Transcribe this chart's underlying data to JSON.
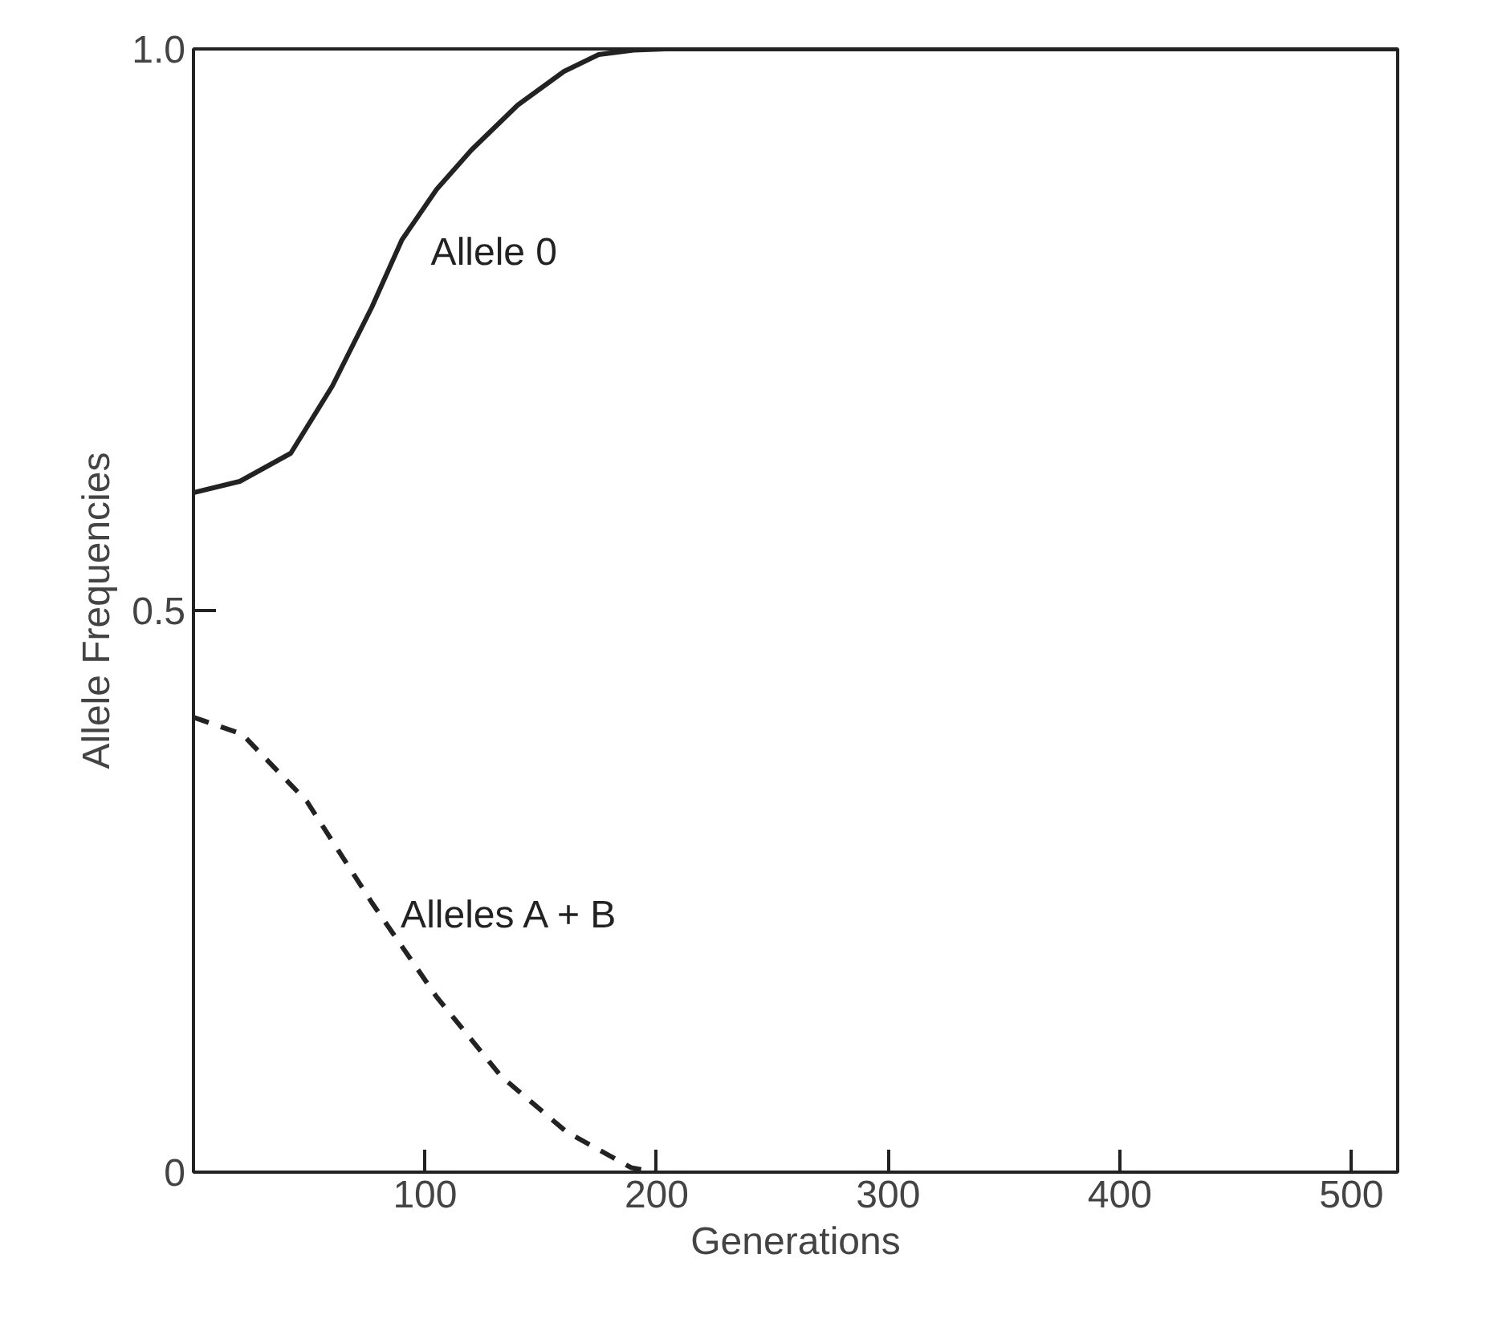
{
  "chart_data": {
    "type": "line",
    "xlabel": "Generations",
    "ylabel": "Allele Frequencies",
    "xlim": [
      0,
      520
    ],
    "ylim": [
      0,
      1.0
    ],
    "xticks": [
      100,
      200,
      300,
      400,
      500
    ],
    "yticks": [
      0,
      {
        "value": 0.5,
        "label": "0.5"
      },
      {
        "value": 1.0,
        "label": "1.0"
      }
    ],
    "grid": false,
    "series": [
      {
        "name": "Allele 0",
        "color": "#222222",
        "line_style": "solid",
        "x": [
          0,
          20,
          42,
          60,
          77,
          90,
          105,
          120,
          140,
          160,
          175,
          190,
          204,
          250,
          300,
          400,
          520
        ],
        "values": [
          0.605,
          0.615,
          0.64,
          0.7,
          0.77,
          0.83,
          0.875,
          0.91,
          0.95,
          0.98,
          0.995,
          0.999,
          1.0,
          1.0,
          1.0,
          1.0,
          1.0
        ]
      },
      {
        "name": "Alleles A + B",
        "color": "#222222",
        "line_style": "dashed",
        "x": [
          0,
          21,
          49,
          77,
          105,
          133,
          161,
          189,
          200
        ],
        "values": [
          0.405,
          0.39,
          0.33,
          0.24,
          0.156,
          0.085,
          0.036,
          0.004,
          0.0
        ]
      }
    ]
  }
}
